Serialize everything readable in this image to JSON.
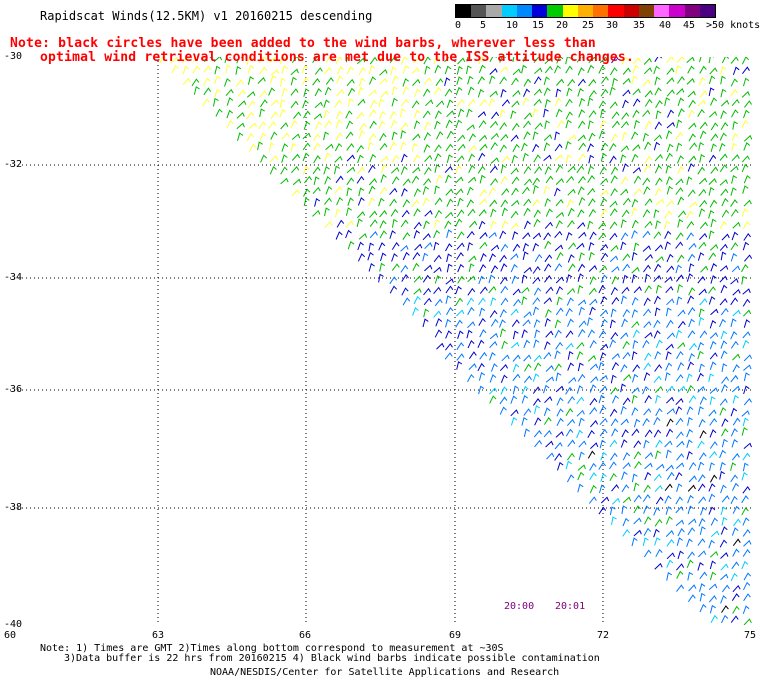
{
  "header": {
    "title": "Rapidscat Winds(12.5KM) v1 20160215 descending",
    "note_line1": "Note: black circles have been added to the wind barbs, wherever less than",
    "note_line2": "optimal wind retrieval conditions are met due to the ISS attitude changes."
  },
  "legend": {
    "colors": [
      "#000000",
      "#555555",
      "#a9a9a9",
      "#00ccff",
      "#0088ff",
      "#0000dd",
      "#00cc00",
      "#ffff00",
      "#ffb000",
      "#ff7000",
      "#ff0000",
      "#cc0000",
      "#804000",
      "#ff66ff",
      "#cc00cc",
      "#800080",
      "#4b0082"
    ],
    "labels": [
      "0",
      "5",
      "10",
      "15",
      "20",
      "25",
      "30",
      "35",
      "40",
      "45",
      ">50 knots"
    ],
    "label_positions": [
      0,
      1,
      2,
      3,
      4,
      5,
      6,
      7,
      8,
      9,
      10
    ]
  },
  "map": {
    "lat_labels": [
      "-30",
      "-32",
      "-34",
      "-36",
      "-38",
      "-40"
    ],
    "lon_labels": [
      "60",
      "63",
      "66",
      "69",
      "72",
      "75"
    ],
    "swath_colors": [
      "#ffff33",
      "#00bb00",
      "#0000cc",
      "#0077ff",
      "#00ccff",
      "#000000"
    ],
    "time_labels": [
      "20:00",
      "20:01"
    ]
  },
  "footer": {
    "line1": "Note: 1) Times are GMT 2)Times along bottom correspond to measurement at ~30S",
    "line2": "3)Data buffer is 22 hrs from 20160215 4) Black wind barbs indicate possible contamination",
    "line3": "NOAA/NESDIS/Center for Satellite Applications and Research"
  }
}
